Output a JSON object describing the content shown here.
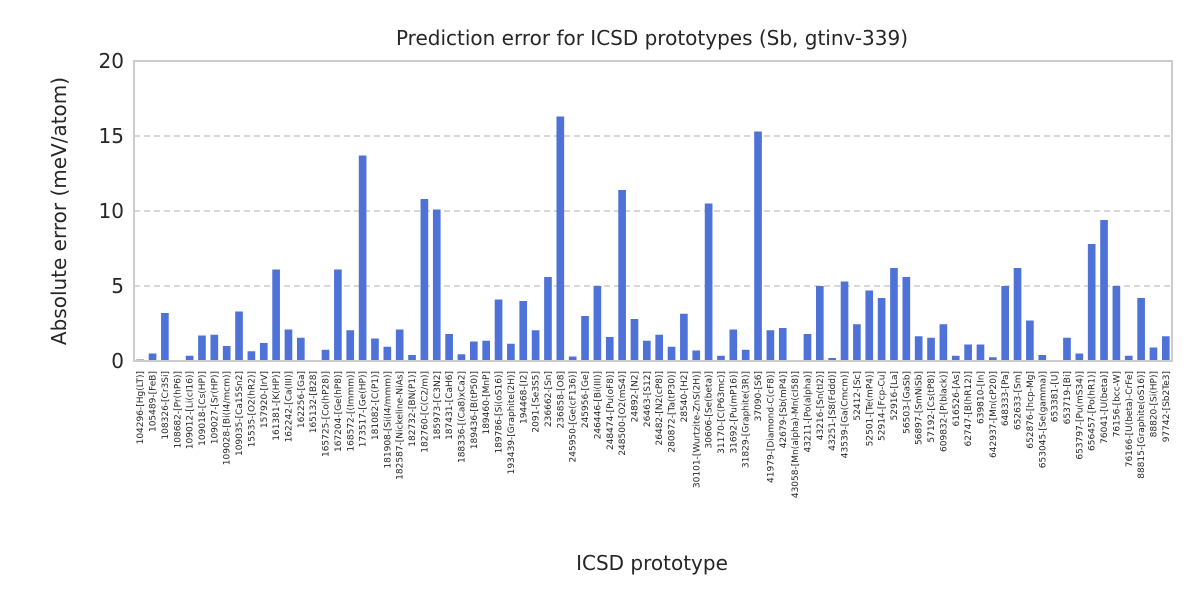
{
  "chart_data": {
    "type": "bar",
    "title": "Prediction error for ICSD prototypes (Sb, gtinv-339)",
    "xlabel": "ICSD prototype",
    "ylabel": "Absolute error (meV/atom)",
    "ylim": [
      0,
      20
    ],
    "yticks": [
      0,
      5,
      10,
      15,
      20
    ],
    "grid": "horizontal-dashed",
    "bar_color": "#4e72d8",
    "categories": [
      "104296-[Hg(LT)]",
      "105489-[FeB]",
      "108326-[Cr3Si]",
      "108682-[Pr(hP6)]",
      "109012-[Li(cI16)]",
      "109018-[Cs(HP)]",
      "109027-[Sr(HP)]",
      "109028-[Bi(I4/mcm)]",
      "109035-[Ca15Sn2]",
      "15535-[O2(hR2)]",
      "157920-[IrV]",
      "161381-[K(HP)]",
      "162242-[Ca(III)]",
      "162256-[Ga]",
      "165132-[B28]",
      "165725-[Co(hP28)]",
      "167204-[Ge(hP8)]",
      "168572-[(Immm)]",
      "173517-[Ge(HP)]",
      "181082-[C(P1)]",
      "181908-[Si(I4/mmm)]",
      "182587-[Nickeline-NiAs]",
      "182732-[BN(P1)]",
      "182760-[C(C2/m)]",
      "185973-[C3N2]",
      "187431-[CaH6]",
      "188336-[(Ca8)xCa2]",
      "189436-[B(tP50)]",
      "189460-[MnP]",
      "189786-[Si(oS16)]",
      "193439-[Graphite(2H)]",
      "194468-[I2]",
      "2091-[Se3S5]",
      "236662-[Sn]",
      "236858-[O8]",
      "245950-[Ge(cF136)]",
      "245956-[Ge]",
      "246446-[Bi(III)]",
      "248474-[Pu(oF8)]",
      "248500-[O2(mS4)]",
      "24892-[N2]",
      "26463-[S12]",
      "26482-[N2(cP8)]",
      "280872-[Ta(tP30)]",
      "28540-[H2]",
      "30101-[Wurtzite-ZnS(2H)]",
      "30606-[Se(beta)]",
      "31170-[C(P63mc)]",
      "31692-[Pu(mP16)]",
      "31829-[Graphite(3R)]",
      "37090-[S6]",
      "41979-[Diamond-C(cF8)]",
      "42679-[Sb(mP4)]",
      "43058-[Mn(alpha)-Mn(cI58)]",
      "43211-[Po(alpha)]",
      "43216-[Sn(tI2)]",
      "43251-[S8(Fddd)]",
      "43539-[Ga(Cmcm)]",
      "52412-[Sc]",
      "52501-[Te(mP4)]",
      "52914-[Fcp-Cu]",
      "52916-[La]",
      "56503-[GaSb]",
      "56897-[SmNiSb]",
      "57192-[Cs(tP8)]",
      "609832-[P(black)]",
      "616526-[As]",
      "62747-[B(hR12)]",
      "639810-[In]",
      "642937-[Mn(cP20)]",
      "648333-[Pa]",
      "652633-[Sm]",
      "652876-[hcp-Mg]",
      "653045-[Se(gamma)]",
      "653381-[U]",
      "653719-[Bi]",
      "653797-[Pu(mS34)]",
      "656457-[Po(hR1)]",
      "76041-[U(beta)]",
      "76156-[bcc-W]",
      "76166-[U(beta)-CrFe]",
      "88815-[Graphite(oS16)]",
      "88820-[Si(HP)]",
      "97742-[Sb2Te3]"
    ],
    "values": [
      0.1,
      0.5,
      3.2,
      0.0,
      0.35,
      1.7,
      1.75,
      1.0,
      3.3,
      0.65,
      1.2,
      6.1,
      2.1,
      1.55,
      0.0,
      0.75,
      6.1,
      2.05,
      13.7,
      1.5,
      0.95,
      2.1,
      0.4,
      10.8,
      10.1,
      1.8,
      0.45,
      1.3,
      1.35,
      4.1,
      1.15,
      4.0,
      2.05,
      5.6,
      16.3,
      0.3,
      3.0,
      5.0,
      1.6,
      11.4,
      2.8,
      1.35,
      1.75,
      0.95,
      3.15,
      0.7,
      10.5,
      0.35,
      2.1,
      0.75,
      15.3,
      2.05,
      2.2,
      0.0,
      1.8,
      5.0,
      0.2,
      5.3,
      2.45,
      4.7,
      4.2,
      6.2,
      5.6,
      1.65,
      1.55,
      2.45,
      0.35,
      1.1,
      1.1,
      0.25,
      5.0,
      6.2,
      2.7,
      0.4,
      0.0,
      1.55,
      0.5,
      7.8,
      9.4,
      5.0,
      0.35,
      4.2,
      0.9,
      1.65
    ]
  }
}
